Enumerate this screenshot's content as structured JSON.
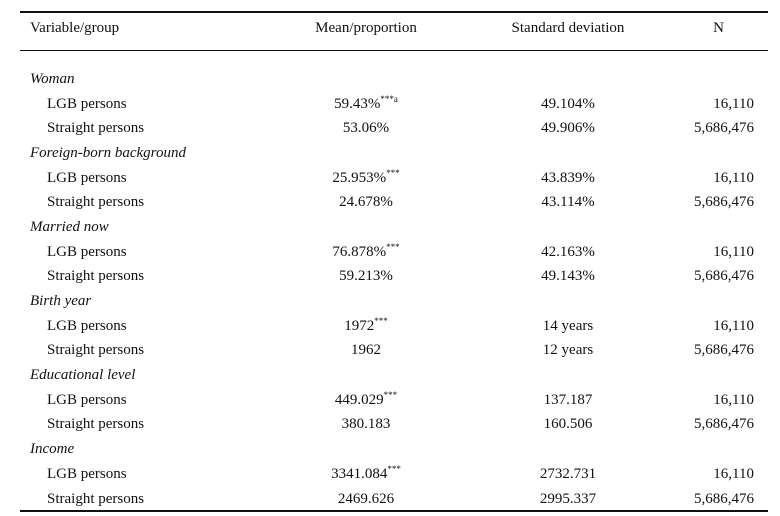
{
  "columns": [
    "Variable/group",
    "Mean/proportion",
    "Standard deviation",
    "N"
  ],
  "groups": [
    {
      "label": "Woman",
      "rows": [
        {
          "label": "LGB persons",
          "mean": "59.43%",
          "sig": "***a",
          "sd": "49.104%",
          "n": "16,110"
        },
        {
          "label": "Straight persons",
          "mean": "53.06%",
          "sig": "",
          "sd": "49.906%",
          "n": "5,686,476"
        }
      ]
    },
    {
      "label": "Foreign-born background",
      "rows": [
        {
          "label": "LGB persons",
          "mean": "25.953%",
          "sig": "***",
          "sd": "43.839%",
          "n": "16,110"
        },
        {
          "label": "Straight persons",
          "mean": "24.678%",
          "sig": "",
          "sd": "43.114%",
          "n": "5,686,476"
        }
      ]
    },
    {
      "label": "Married now",
      "rows": [
        {
          "label": "LGB persons",
          "mean": "76.878%",
          "sig": "***",
          "sd": "42.163%",
          "n": "16,110"
        },
        {
          "label": "Straight persons",
          "mean": "59.213%",
          "sig": "",
          "sd": "49.143%",
          "n": "5,686,476"
        }
      ]
    },
    {
      "label": "Birth year",
      "rows": [
        {
          "label": "LGB persons",
          "mean": "1972",
          "sig": "***",
          "sd": "14 years",
          "n": "16,110"
        },
        {
          "label": "Straight persons",
          "mean": "1962",
          "sig": "",
          "sd": "12 years",
          "n": "5,686,476"
        }
      ]
    },
    {
      "label": "Educational level",
      "rows": [
        {
          "label": "LGB persons",
          "mean": "449.029",
          "sig": "***",
          "sd": "137.187",
          "n": "16,110"
        },
        {
          "label": "Straight persons",
          "mean": "380.183",
          "sig": "",
          "sd": "160.506",
          "n": "5,686,476"
        }
      ]
    },
    {
      "label": "Income",
      "rows": [
        {
          "label": "LGB persons",
          "mean": "3341.084",
          "sig": "***",
          "sd": "2732.731",
          "n": "16,110"
        },
        {
          "label": "Straight persons",
          "mean": "2469.626",
          "sig": "",
          "sd": "2995.337",
          "n": "5,686,476"
        }
      ]
    }
  ]
}
